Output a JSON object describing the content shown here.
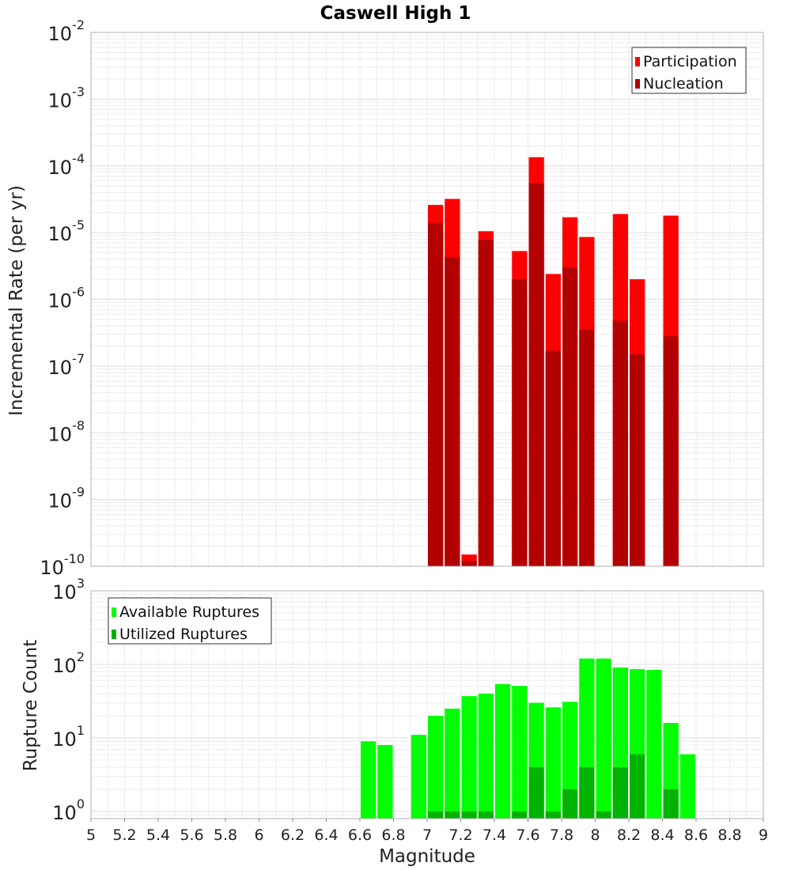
{
  "chart_data": [
    {
      "type": "bar",
      "title": "Caswell High 1",
      "ylabel": "Incremental Rate (per yr)",
      "xlabel": "",
      "yscale": "log",
      "ylim": [
        1e-10,
        0.01
      ],
      "xlim": [
        5,
        9
      ],
      "grid": true,
      "legend_position": "top-right",
      "y_ticks": [
        {
          "base": "10",
          "exp": "-10",
          "value": 1e-10
        },
        {
          "base": "10",
          "exp": "-9",
          "value": 1e-09
        },
        {
          "base": "10",
          "exp": "-8",
          "value": 1e-08
        },
        {
          "base": "10",
          "exp": "-7",
          "value": 1e-07
        },
        {
          "base": "10",
          "exp": "-6",
          "value": 1e-06
        },
        {
          "base": "10",
          "exp": "-5",
          "value": 1e-05
        },
        {
          "base": "10",
          "exp": "-4",
          "value": 0.0001
        },
        {
          "base": "10",
          "exp": "-3",
          "value": 0.001
        },
        {
          "base": "10",
          "exp": "-2",
          "value": 0.01
        }
      ],
      "bar_width": 0.1,
      "series": [
        {
          "name": "Participation",
          "color": "#ff0000",
          "x": [
            7.05,
            7.15,
            7.25,
            7.35,
            7.55,
            7.65,
            7.75,
            7.85,
            7.95,
            8.15,
            8.25,
            8.45
          ],
          "values": [
            2.6e-05,
            3.2e-05,
            1.5e-10,
            1.05e-05,
            5.3e-06,
            0.000135,
            2.4e-06,
            1.7e-05,
            8.6e-06,
            1.9e-05,
            2e-06,
            1.8e-05
          ]
        },
        {
          "name": "Nucleation",
          "color": "#b30000",
          "x": [
            7.05,
            7.15,
            7.25,
            7.35,
            7.55,
            7.65,
            7.75,
            7.85,
            7.95,
            8.15,
            8.25,
            8.45
          ],
          "values": [
            1.4e-05,
            4.3e-06,
            1.2e-10,
            7.8e-06,
            2e-06,
            5.5e-05,
            1.7e-07,
            3e-06,
            3.5e-07,
            4.8e-07,
            1.5e-07,
            2.8e-07
          ]
        }
      ]
    },
    {
      "type": "bar",
      "title": "",
      "ylabel": "Rupture Count",
      "xlabel": "Magnitude",
      "yscale": "log",
      "ylim": [
        0.8,
        1000
      ],
      "xlim": [
        5,
        9
      ],
      "grid": true,
      "legend_position": "top-left",
      "x_ticks": [
        "5",
        "5.2",
        "5.4",
        "5.6",
        "5.8",
        "6",
        "6.2",
        "6.4",
        "6.6",
        "6.8",
        "7",
        "7.2",
        "7.4",
        "7.6",
        "7.8",
        "8",
        "8.2",
        "8.4",
        "8.6",
        "8.8",
        "9"
      ],
      "y_ticks": [
        {
          "base": "10",
          "exp": "0",
          "value": 1
        },
        {
          "base": "10",
          "exp": "1",
          "value": 10
        },
        {
          "base": "10",
          "exp": "2",
          "value": 100
        },
        {
          "base": "10",
          "exp": "3",
          "value": 1000
        }
      ],
      "bar_width": 0.1,
      "series": [
        {
          "name": "Available Ruptures",
          "color": "#00ff00",
          "x": [
            6.65,
            6.75,
            6.95,
            7.05,
            7.15,
            7.25,
            7.35,
            7.45,
            7.55,
            7.65,
            7.75,
            7.85,
            7.95,
            8.05,
            8.15,
            8.25,
            8.35,
            8.45,
            8.55
          ],
          "values": [
            9,
            8,
            11,
            20,
            25,
            37,
            40,
            54,
            51,
            30,
            26,
            31,
            120,
            120,
            91,
            86,
            84,
            16,
            6
          ]
        },
        {
          "name": "Utilized Ruptures",
          "color": "#00b300",
          "x": [
            7.05,
            7.15,
            7.25,
            7.35,
            7.55,
            7.65,
            7.75,
            7.85,
            7.95,
            8.05,
            8.15,
            8.25,
            8.45
          ],
          "values": [
            1,
            1,
            1,
            1,
            1,
            4,
            1,
            2,
            4,
            1,
            4,
            6,
            2
          ]
        }
      ]
    }
  ]
}
